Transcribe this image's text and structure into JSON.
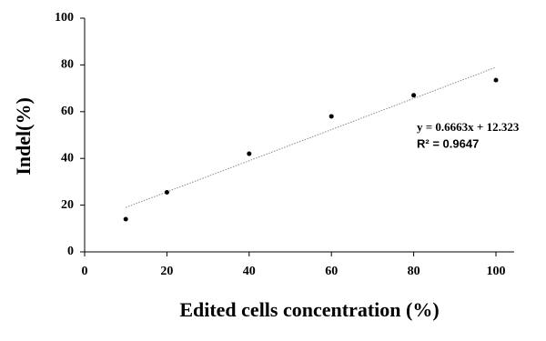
{
  "chart_data": {
    "type": "scatter",
    "xlabel": "Edited cells concentration (%)",
    "ylabel": "Indel(%)",
    "series": [
      {
        "x": [
          10,
          20,
          40,
          60,
          80,
          100
        ],
        "values": [
          14,
          25.5,
          42,
          58,
          67,
          73.5
        ],
        "color": "#000000"
      }
    ],
    "trendline": {
      "x": [
        10,
        100
      ],
      "values": [
        19,
        79
      ],
      "color": "#888888",
      "equation": "y = 0.6663x + 12.323",
      "r_squared": "R² = 0.9647"
    },
    "xlim": [
      0,
      100
    ],
    "xticks": [
      0,
      20,
      40,
      60,
      80,
      100
    ],
    "ylim": [
      0,
      100
    ],
    "yticks": [
      0,
      20,
      40,
      60,
      80,
      100
    ],
    "grid": false
  }
}
